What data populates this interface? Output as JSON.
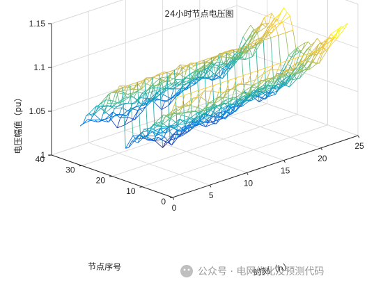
{
  "chart_data": {
    "type": "surface",
    "title": "24小时节点电压图",
    "xlabel": "时刻（h）",
    "ylabel": "节点序号",
    "zlabel": "电压幅值（pu）",
    "xlim": [
      0,
      25
    ],
    "ylim": [
      0,
      40
    ],
    "zlim": [
      1,
      1.15
    ],
    "xticks": [
      0,
      5,
      10,
      15,
      20,
      25
    ],
    "yticks": [
      0,
      10,
      20,
      30,
      40
    ],
    "zticks": [
      1,
      1.05,
      1.1,
      1.15
    ],
    "ztick_labels": [
      "1",
      "1.05",
      "1.1",
      "1.15"
    ],
    "grid": true,
    "colormap": "parula",
    "hours": [
      1,
      2,
      3,
      4,
      5,
      6,
      7,
      8,
      9,
      10,
      11,
      12,
      13,
      14,
      15,
      16,
      17,
      18,
      19,
      20,
      21,
      22,
      23,
      24
    ],
    "nodes": [
      1,
      2,
      3,
      4,
      5,
      6,
      7,
      8,
      9,
      10,
      11,
      12,
      13,
      14,
      15,
      16,
      17,
      18,
      19,
      20,
      21,
      22,
      23,
      24,
      25,
      26,
      27,
      28,
      29,
      30,
      31,
      32,
      33
    ],
    "source_voltage_by_hour": [
      1.11,
      1.11,
      1.11,
      1.11,
      1.11,
      1.11,
      1.11,
      1.11,
      1.11,
      1.11,
      1.11,
      1.11,
      1.11,
      1.11,
      1.11,
      1.11,
      1.11,
      1.11,
      1.11,
      1.11,
      1.11,
      1.12,
      1.125,
      1.13
    ],
    "min_voltage_by_hour": [
      1.035,
      1.04,
      1.035,
      1.03,
      1.03,
      1.02,
      1.025,
      1.025,
      1.03,
      1.035,
      1.03,
      1.025,
      1.03,
      1.035,
      1.035,
      1.04,
      1.045,
      1.04,
      1.035,
      1.04,
      1.05,
      1.06,
      1.075,
      1.08
    ],
    "secondary_feeder_voltage_by_hour": [
      1.1,
      1.1,
      1.1,
      1.1,
      1.1,
      1.1,
      1.1,
      1.1,
      1.1,
      1.1,
      1.1,
      1.1,
      1.1,
      1.1,
      1.1,
      1.1,
      1.1,
      1.1,
      1.1,
      1.1,
      1.1,
      1.1,
      1.1,
      1.1
    ]
  },
  "watermark": {
    "icon": "wechat-icon",
    "text": "公众号 · 电网优化及预测代码"
  },
  "colors": {
    "axis": "#262626",
    "grid": "#dcdcdc"
  }
}
